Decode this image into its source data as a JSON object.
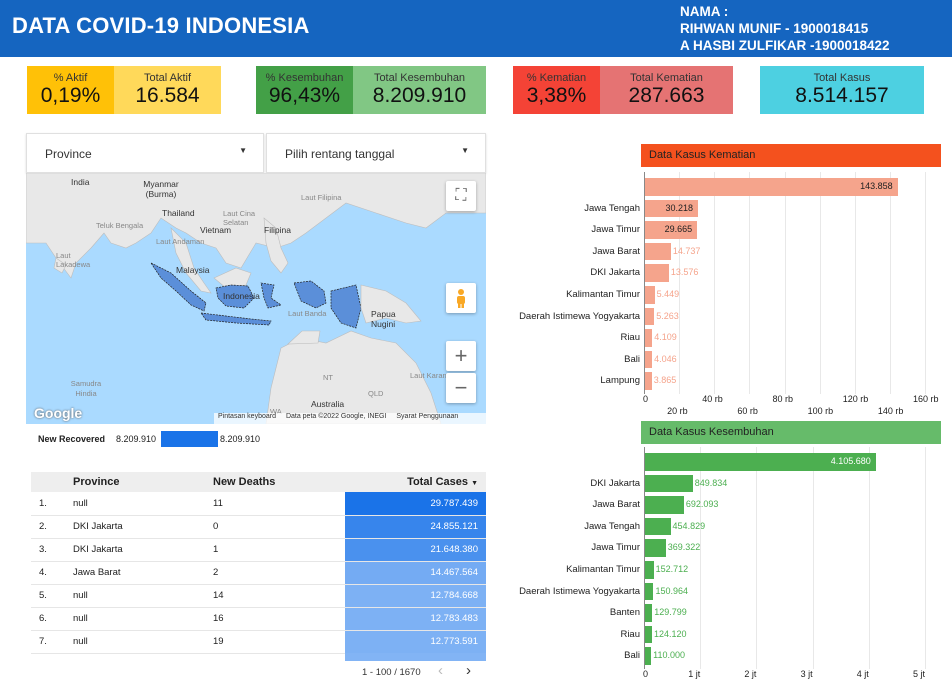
{
  "header": {
    "title": "DATA COVID-19 INDONESIA",
    "nama_label": "NAMA :",
    "member1": "RIHWAN MUNIF - 1900018415",
    "member2": "A HASBI ZULFIKAR -1900018422"
  },
  "kpis": {
    "aktif_pct_label": "% Aktif",
    "aktif_pct": "0,19%",
    "aktif_total_label": "Total Aktif",
    "aktif_total": "16.584",
    "sembuh_pct_label": "% Kesembuhan",
    "sembuh_pct": "96,43%",
    "sembuh_total_label": "Total Kesembuhan",
    "sembuh_total": "8.209.910",
    "mati_pct_label": "% Kematian",
    "mati_pct": "3,38%",
    "mati_total_label": "Total Kematian",
    "mati_total": "287.663",
    "kasus_label": "Total Kasus",
    "kasus_total": "8.514.157"
  },
  "filters": {
    "province": "Province",
    "date_range": "Pilih rentang tanggal"
  },
  "map": {
    "labels": [
      "India",
      "Myanmar (Burma)",
      "Thailand",
      "Vietnam",
      "Laut Cina Selatan",
      "Laut Filipina",
      "Filipina",
      "Teluk Bengala",
      "Laut Andaman",
      "Laut Lakadewa",
      "Malaysia",
      "Indonesia",
      "Laut Banda",
      "Papua Nugini",
      "Samudra Hindia",
      "Australia",
      "NT",
      "QLD",
      "WA",
      "Laut Karang"
    ],
    "footer_shortcuts": "Pintasan keyboard",
    "footer_data": "Data peta ©2022 Google, INEGI",
    "footer_terms": "Syarat Penggunaan",
    "google": "Google"
  },
  "legend": {
    "label": "New Recovered",
    "min": "8.209.910",
    "max": "8.209.910"
  },
  "table": {
    "headers": [
      "Province",
      "New Deaths",
      "Total Cases"
    ],
    "rows": [
      {
        "n": "1.",
        "province": "null",
        "deaths": "11",
        "cases": "29.787.439"
      },
      {
        "n": "2.",
        "province": "DKI Jakarta",
        "deaths": "0",
        "cases": "24.855.121"
      },
      {
        "n": "3.",
        "province": "DKI Jakarta",
        "deaths": "1",
        "cases": "21.648.380"
      },
      {
        "n": "4.",
        "province": "Jawa Barat",
        "deaths": "2",
        "cases": "14.467.564"
      },
      {
        "n": "5.",
        "province": "null",
        "deaths": "14",
        "cases": "12.784.668"
      },
      {
        "n": "6.",
        "province": "null",
        "deaths": "16",
        "cases": "12.783.483"
      },
      {
        "n": "7.",
        "province": "null",
        "deaths": "19",
        "cases": "12.773.591"
      }
    ],
    "pagination": "1 - 100 / 1670"
  },
  "chart_data": [
    {
      "type": "bar",
      "title": "Data Kasus Kematian",
      "categories": [
        "",
        "Jawa Tengah",
        "Jawa Timur",
        "Jawa Barat",
        "DKI Jakarta",
        "Kalimantan Timur",
        "Daerah Istimewa Yogyakarta",
        "Riau",
        "Bali",
        "Lampung"
      ],
      "values": [
        143858,
        30218,
        29665,
        14737,
        13576,
        5449,
        5263,
        4109,
        4046,
        3865
      ],
      "value_labels": [
        "143.858",
        "30.218",
        "29.665",
        "14.737",
        "13.576",
        "5.449",
        "5.263",
        "4.109",
        "4.046",
        "3.865"
      ],
      "x_ticks": [
        "0",
        "20 rb",
        "40 rb",
        "60 rb",
        "80 rb",
        "100 rb",
        "120 rb",
        "140 rb",
        "160 rb"
      ],
      "xlim": [
        0,
        160000
      ],
      "color": "#f5a48c",
      "title_bg": "#f4511e"
    },
    {
      "type": "bar",
      "title": "Data Kasus Kesembuhan",
      "categories": [
        "",
        "DKI Jakarta",
        "Jawa Barat",
        "Jawa Tengah",
        "Jawa Timur",
        "Kalimantan Timur",
        "Daerah Istimewa Yogyakarta",
        "Banten",
        "Riau",
        "Bali"
      ],
      "values": [
        4105680,
        849834,
        692093,
        454829,
        369322,
        152712,
        150964,
        129799,
        124120,
        110000
      ],
      "value_labels": [
        "4.105.680",
        "849.834",
        "692.093",
        "454.829",
        "369.322",
        "152.712",
        "150.964",
        "129.799",
        "124.120",
        "110.000"
      ],
      "x_ticks": [
        "0",
        "1 jt",
        "2 jt",
        "3 jt",
        "4 jt",
        "5 jt"
      ],
      "xlim": [
        0,
        5000000
      ],
      "color": "#4caf50",
      "title_bg": "#66bb6a"
    }
  ]
}
